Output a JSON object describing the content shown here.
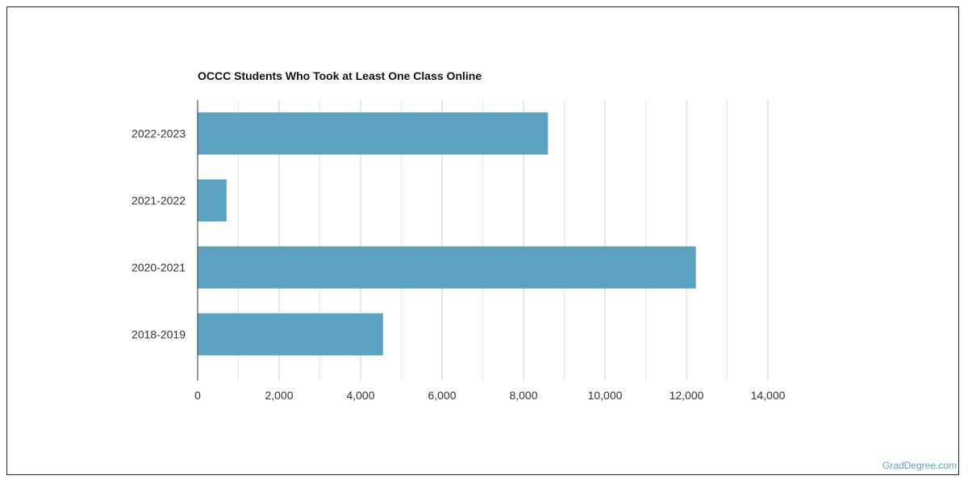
{
  "chart_data": {
    "type": "bar",
    "orientation": "horizontal",
    "title": "OCCC Students Who Took at Least One Class Online",
    "categories": [
      "2022-2023",
      "2021-2022",
      "2020-2021",
      "2018-2019"
    ],
    "values": [
      8600,
      710,
      12230,
      4550
    ],
    "xlim": [
      0,
      14000
    ],
    "xticks": [
      0,
      2000,
      4000,
      6000,
      8000,
      10000,
      12000,
      14000
    ],
    "xtick_labels": [
      "0",
      "2,000",
      "4,000",
      "6,000",
      "8,000",
      "10,000",
      "12,000",
      "14,000"
    ],
    "grid": true,
    "bar_color": "#5ba3c0"
  },
  "credit": "GradDegree.com"
}
